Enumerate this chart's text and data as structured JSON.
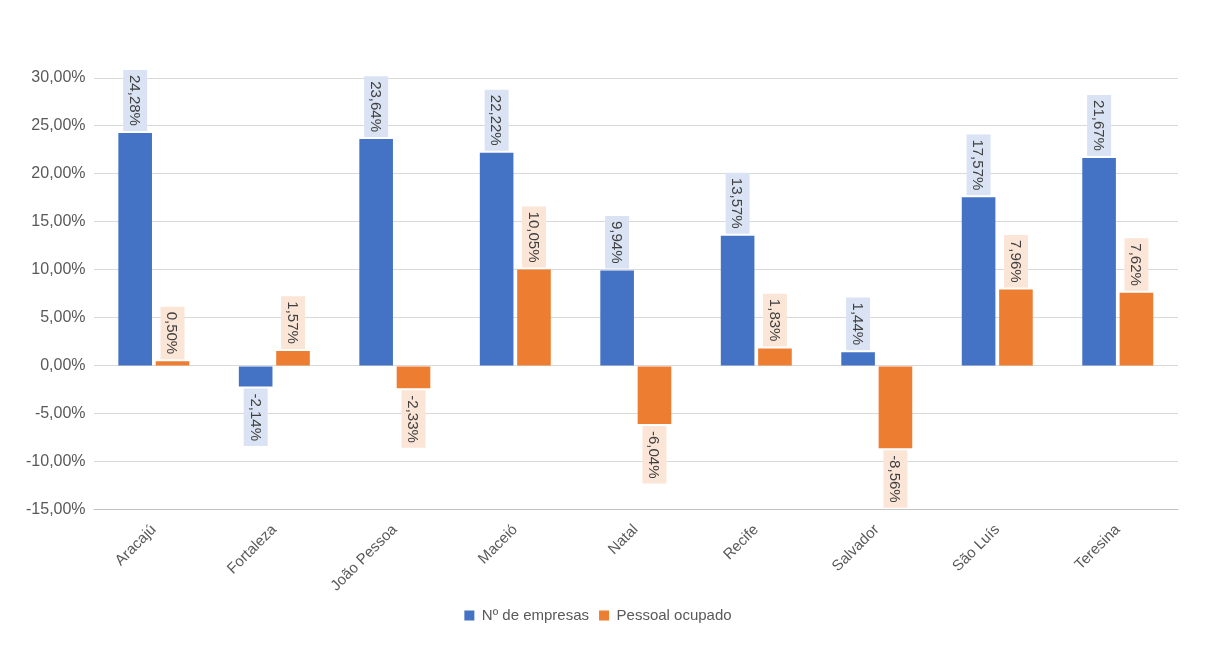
{
  "chart_data": {
    "type": "bar",
    "categories": [
      "Aracajú",
      "Fortaleza",
      "João Pessoa",
      "Maceió",
      "Natal",
      "Recife",
      "Salvador",
      "São Luís",
      "Teresina"
    ],
    "series": [
      {
        "name": "Nº de empresas",
        "color": "#4472c4",
        "values": [
          24.28,
          -2.14,
          23.64,
          22.22,
          9.94,
          13.57,
          1.44,
          17.57,
          21.67
        ],
        "value_labels": [
          "24,28%",
          "-2,14%",
          "23,64%",
          "22,22%",
          "9,94%",
          "13,57%",
          "1,44%",
          "17,57%",
          "21,67%"
        ]
      },
      {
        "name": "Pessoal ocupado",
        "color": "#ed7d31",
        "values": [
          0.5,
          1.57,
          -2.33,
          10.05,
          -6.04,
          1.83,
          -8.56,
          7.96,
          7.62
        ],
        "value_labels": [
          "0,50%",
          "1,57%",
          "-2,33%",
          "10,05%",
          "-6,04%",
          "1,83%",
          "-8,56%",
          "7,96%",
          "7,62%"
        ]
      }
    ],
    "ylim": [
      -15,
      30
    ],
    "yticks": [
      {
        "value": -15,
        "label": "-15,00%"
      },
      {
        "value": -10,
        "label": "-10,00%"
      },
      {
        "value": -5,
        "label": "-5,00%"
      },
      {
        "value": 0,
        "label": "0,00%"
      },
      {
        "value": 5,
        "label": "5,00%"
      },
      {
        "value": 10,
        "label": "10,00%"
      },
      {
        "value": 15,
        "label": "15,00%"
      },
      {
        "value": 20,
        "label": "20,00%"
      },
      {
        "value": 25,
        "label": "25,00%"
      },
      {
        "value": 30,
        "label": "30,00%"
      }
    ],
    "grid": "y",
    "legend": "bottom"
  }
}
